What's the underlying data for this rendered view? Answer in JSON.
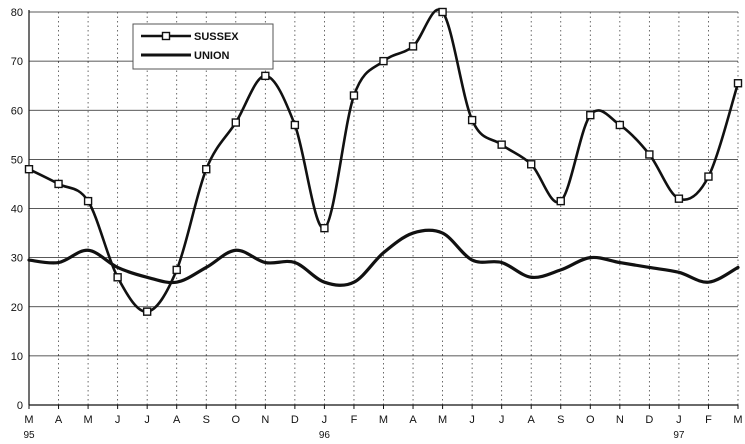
{
  "chart_data": {
    "type": "line",
    "categories": [
      "M",
      "A",
      "M",
      "J",
      "J",
      "A",
      "S",
      "O",
      "N",
      "D",
      "J",
      "F",
      "M",
      "A",
      "M",
      "J",
      "J",
      "A",
      "S",
      "O",
      "N",
      "D",
      "J",
      "F",
      "M"
    ],
    "year_labels": [
      {
        "index": 0,
        "label": "95"
      },
      {
        "index": 10,
        "label": "96"
      },
      {
        "index": 22,
        "label": "97"
      }
    ],
    "ylim": [
      0,
      80
    ],
    "yticks": [
      0,
      10,
      20,
      30,
      40,
      50,
      60,
      70,
      80
    ],
    "grid": {
      "horizontal": true,
      "vertical": "dotted"
    },
    "legend_position": "top-left",
    "series": [
      {
        "name": "SUSSEX",
        "marker": "square",
        "values": [
          48,
          45,
          41.5,
          26,
          19,
          27.5,
          48,
          57.5,
          67,
          57,
          36,
          63,
          70,
          73,
          80,
          58,
          53,
          49,
          41.5,
          59,
          57,
          51,
          42,
          46.5,
          65.5
        ]
      },
      {
        "name": "UNION",
        "marker": "none",
        "values": [
          29.5,
          29,
          31.5,
          28,
          26,
          25,
          28,
          31.5,
          29,
          29,
          25,
          25,
          31,
          35,
          35,
          29.5,
          29,
          26,
          27.5,
          30,
          29,
          28,
          27,
          25,
          28
        ]
      }
    ]
  },
  "colors": {
    "line": "#111111",
    "grid": "#222222",
    "background": "#ffffff"
  }
}
